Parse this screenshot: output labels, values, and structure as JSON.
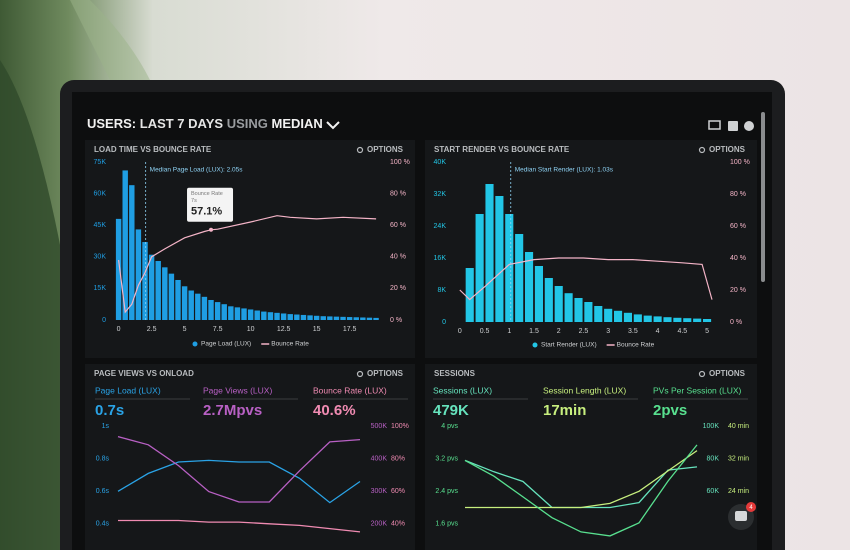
{
  "header": {
    "parts": [
      "USERS:",
      "LAST 7 DAYS",
      "USING",
      "MEDIAN"
    ]
  },
  "panel_menu": "OPTIONS",
  "chat_badge": 4,
  "chart_data": [
    {
      "type": "bar",
      "title": "LOAD TIME VS BOUNCE RATE",
      "xlim": [
        -0.5,
        19.95
      ],
      "xticks": [
        0,
        2.5,
        5,
        7.5,
        10,
        12.5,
        15,
        17.5
      ],
      "ylim": [
        0,
        75000
      ],
      "yticks": [
        0,
        {
          "value": 15000,
          "label": "15K"
        },
        {
          "value": 30000,
          "label": "30K"
        },
        {
          "value": 45000,
          "label": "45K"
        },
        {
          "value": 60000,
          "label": "60K"
        },
        {
          "value": 75000,
          "label": "75K"
        }
      ],
      "y2lim": [
        0,
        100
      ],
      "y2ticks": [
        {
          "value": 0,
          "label": "0 %"
        },
        {
          "value": 20,
          "label": "20 %"
        },
        {
          "value": 40,
          "label": "40 %"
        },
        {
          "value": 60,
          "label": "60 %"
        },
        {
          "value": 80,
          "label": "80 %"
        },
        {
          "value": 100,
          "label": "100 %"
        }
      ],
      "series": [
        {
          "name": "Page Load (LUX)",
          "color": "#1f9ee3",
          "type": "bar",
          "x": [
            0,
            0.5,
            1,
            1.5,
            2,
            2.5,
            3,
            3.5,
            4,
            4.5,
            5,
            5.5,
            6,
            6.5,
            7,
            7.5,
            8,
            8.5,
            9,
            9.5,
            10,
            10.5,
            11,
            11.5,
            12,
            12.5,
            13,
            13.5,
            14,
            14.5,
            15,
            15.5,
            16,
            16.5,
            17,
            17.5,
            18,
            18.5,
            19,
            19.5
          ],
          "values": [
            48000,
            71000,
            64000,
            43000,
            37000,
            31000,
            28000,
            25000,
            22000,
            19000,
            16000,
            14000,
            12500,
            11000,
            9500,
            8500,
            7500,
            6500,
            6000,
            5500,
            5000,
            4500,
            4000,
            3700,
            3400,
            3100,
            2800,
            2600,
            2400,
            2200,
            2000,
            1800,
            1700,
            1600,
            1500,
            1400,
            1300,
            1200,
            1100,
            1000
          ]
        },
        {
          "name": "Bounce Rate",
          "color": "#f4b4c7",
          "type": "line",
          "axis": "y2",
          "x": [
            0,
            0.5,
            1,
            1.5,
            2,
            2.5,
            3.5,
            5,
            6.5,
            7,
            7.5,
            10,
            12,
            13,
            15,
            17,
            19.5
          ],
          "values": [
            38,
            5,
            10,
            22,
            30,
            40,
            45,
            52,
            56,
            57.1,
            57.5,
            62,
            66,
            65,
            64,
            65,
            64
          ]
        }
      ],
      "annotations": [
        {
          "text": "Median Page Load (LUX): 2.05s",
          "x": 2.05
        }
      ],
      "tooltip": {
        "title": "Bounce Rate",
        "x": 7,
        "x_label": "7s",
        "value": 57.1,
        "value_label": "57.1%"
      }
    },
    {
      "type": "bar",
      "title": "START RENDER VS BOUNCE RATE",
      "xlim": [
        -0.3,
        5.1
      ],
      "xticks": [
        0,
        0.5,
        1,
        1.5,
        2,
        2.5,
        3,
        3.5,
        4,
        4.5,
        5
      ],
      "ylim": [
        0,
        40000
      ],
      "yticks": [
        0,
        {
          "value": 8000,
          "label": "8K"
        },
        {
          "value": 16000,
          "label": "16K"
        },
        {
          "value": 24000,
          "label": "24K"
        },
        {
          "value": 32000,
          "label": "32K"
        },
        {
          "value": 40000,
          "label": "40K"
        }
      ],
      "y2lim": [
        0,
        100
      ],
      "y2ticks": [
        {
          "value": 0,
          "label": "0 %"
        },
        {
          "value": 20,
          "label": "20 %"
        },
        {
          "value": 40,
          "label": "40 %"
        },
        {
          "value": 60,
          "label": "60 %"
        },
        {
          "value": 80,
          "label": "80 %"
        },
        {
          "value": 100,
          "label": "100 %"
        }
      ],
      "series": [
        {
          "name": "Start Render (LUX)",
          "color": "#22c6e6",
          "type": "bar",
          "x": [
            0.2,
            0.4,
            0.6,
            0.8,
            1,
            1.2,
            1.4,
            1.6,
            1.8,
            2,
            2.2,
            2.4,
            2.6,
            2.8,
            3,
            3.2,
            3.4,
            3.6,
            3.8,
            4,
            4.2,
            4.4,
            4.6,
            4.8,
            5
          ],
          "values": [
            13500,
            27000,
            34500,
            31500,
            27000,
            22000,
            17500,
            14000,
            11000,
            9000,
            7200,
            6000,
            5000,
            4000,
            3300,
            2800,
            2300,
            1900,
            1600,
            1400,
            1200,
            1050,
            950,
            850,
            750
          ]
        },
        {
          "name": "Bounce Rate",
          "color": "#f4b4c7",
          "type": "line",
          "axis": "y2",
          "x": [
            0,
            0.2,
            0.5,
            1,
            1.5,
            2,
            2.5,
            3,
            3.5,
            4,
            4.5,
            4.9,
            5.1
          ],
          "values": [
            20,
            14,
            22,
            36,
            39,
            40,
            40,
            39,
            39,
            38,
            37,
            36,
            14
          ]
        }
      ],
      "annotations": [
        {
          "text": "Median Start Render (LUX): 1.03s",
          "x": 1.03
        }
      ]
    },
    {
      "type": "line",
      "title": "PAGE VIEWS VS ONLOAD",
      "ylim": [
        0.3,
        1.1
      ],
      "yticks": [
        {
          "value": 1,
          "label": "1s"
        },
        {
          "value": 0.8,
          "label": "0.8s"
        },
        {
          "value": 0.6,
          "label": "0.6s"
        },
        {
          "value": 0.4,
          "label": "0.4s"
        }
      ],
      "y2lim": [
        150000,
        550000
      ],
      "y2ticks": [
        {
          "value": 500000,
          "label": "500K"
        },
        {
          "value": 400000,
          "label": "400K"
        },
        {
          "value": 300000,
          "label": "300K"
        },
        {
          "value": 200000,
          "label": "200K"
        }
      ],
      "y3lim": [
        30,
        110
      ],
      "y3ticks": [
        {
          "value": 100,
          "label": "100%"
        },
        {
          "value": 80,
          "label": "80%"
        },
        {
          "value": 60,
          "label": "60%"
        },
        {
          "value": 40,
          "label": "40%"
        }
      ],
      "series": [
        {
          "name": "Page Load (LUX)",
          "summary": "0.7s",
          "color": "#2aa3e6",
          "axis": "y",
          "values": [
            0.6,
            0.71,
            0.78,
            0.79,
            0.78,
            0.78,
            0.68,
            0.53,
            0.66
          ]
        },
        {
          "name": "Page Views (LUX)",
          "summary": "2.7Mpvs",
          "color": "#b860c4",
          "axis": "y2",
          "values": [
            468000,
            443000,
            379000,
            299000,
            267000,
            267000,
            363000,
            452000,
            459000
          ]
        },
        {
          "name": "Bounce Rate (LUX)",
          "summary": "40.6%",
          "color": "#f08bb2",
          "axis": "y3",
          "values": [
            42,
            42,
            42,
            41,
            41,
            40,
            39,
            37,
            35
          ]
        }
      ]
    },
    {
      "type": "line",
      "title": "SESSIONS",
      "ylim": [
        1.2,
        4.4
      ],
      "yticks": [
        {
          "value": 4,
          "label": "4 pvs"
        },
        {
          "value": 3.2,
          "label": "3.2 pvs"
        },
        {
          "value": 2.4,
          "label": "2.4 pvs"
        },
        {
          "value": 1.6,
          "label": "1.6 pvs"
        }
      ],
      "y2lim": [
        30000,
        110000
      ],
      "y2ticks": [
        {
          "value": 100000,
          "label": "100K"
        },
        {
          "value": 80000,
          "label": "80K"
        },
        {
          "value": 60000,
          "label": "60K"
        }
      ],
      "y3lim": [
        12,
        44
      ],
      "y3ticks": [
        {
          "value": 40,
          "label": "40 min"
        },
        {
          "value": 32,
          "label": "32 min"
        },
        {
          "value": 24,
          "label": "24 min"
        }
      ],
      "series": [
        {
          "name": "Sessions (LUX)",
          "summary": "479K",
          "color": "#66e3bd",
          "axis": "y2",
          "values": [
            79000,
            72000,
            66000,
            50000,
            50000,
            50000,
            53000,
            73000,
            75000
          ]
        },
        {
          "name": "Session Length (LUX)",
          "summary": "17min",
          "color": "#c7ef7e",
          "axis": "y3",
          "values": [
            20,
            20,
            20,
            20,
            20,
            21,
            24,
            29,
            34
          ]
        },
        {
          "name": "PVs Per Session (LUX)",
          "summary": "2pvs",
          "color": "#58e08f",
          "axis": "y",
          "values": [
            3.16,
            2.77,
            2.26,
            1.75,
            1.4,
            1.3,
            1.62,
            2.65,
            3.54
          ]
        }
      ]
    }
  ]
}
